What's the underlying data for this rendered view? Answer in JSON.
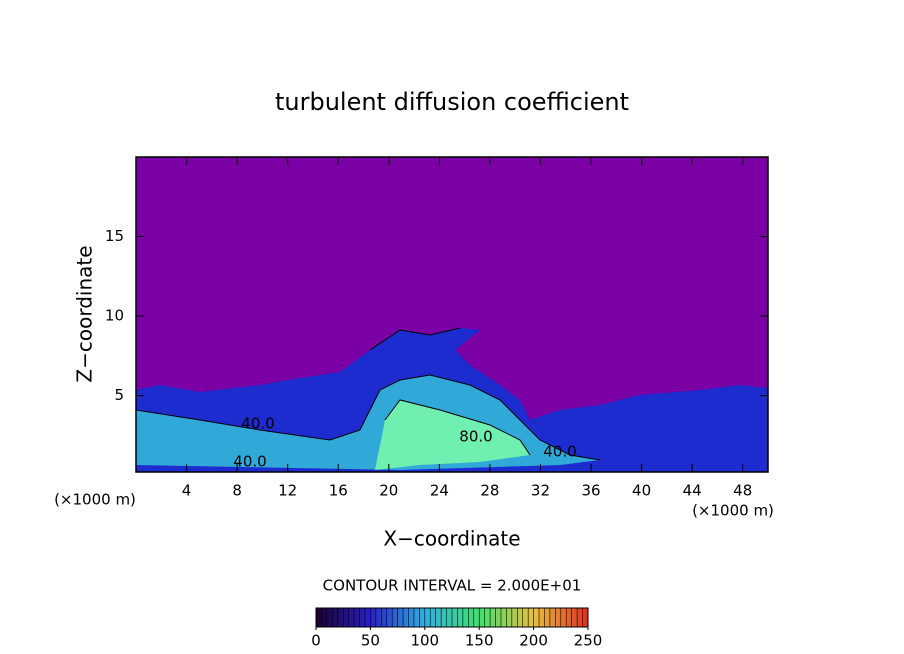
{
  "chart_data": {
    "type": "contour",
    "title": "turbulent diffusion coefficient",
    "x_label": "X−coordinate",
    "y_label": "Z−coordinate",
    "x_unit_left": "(×1000 m)",
    "x_unit_right": "(×1000 m)",
    "xlim": [
      0,
      50
    ],
    "xticks": [
      4,
      8,
      12,
      16,
      20,
      24,
      28,
      32,
      36,
      40,
      44,
      48
    ],
    "ylim": [
      0.2,
      20
    ],
    "yticks": [
      5,
      10,
      15
    ],
    "contour_interval": "CONTOUR INTERVAL = 2.000E+01",
    "contour_labels": [
      {
        "value": 40,
        "label": "40.0"
      },
      {
        "value": 80,
        "label": "80.0"
      },
      {
        "value": 40,
        "label": "40.0"
      },
      {
        "value": 40,
        "label": "40.0"
      }
    ],
    "clim": [
      0,
      250
    ],
    "colorbar_ticks": [
      0,
      50,
      100,
      150,
      200,
      250
    ],
    "colormap": [
      "#1a0030",
      "#2a20c8",
      "#30b0e0",
      "#40e070",
      "#e8c040",
      "#e03020"
    ]
  }
}
